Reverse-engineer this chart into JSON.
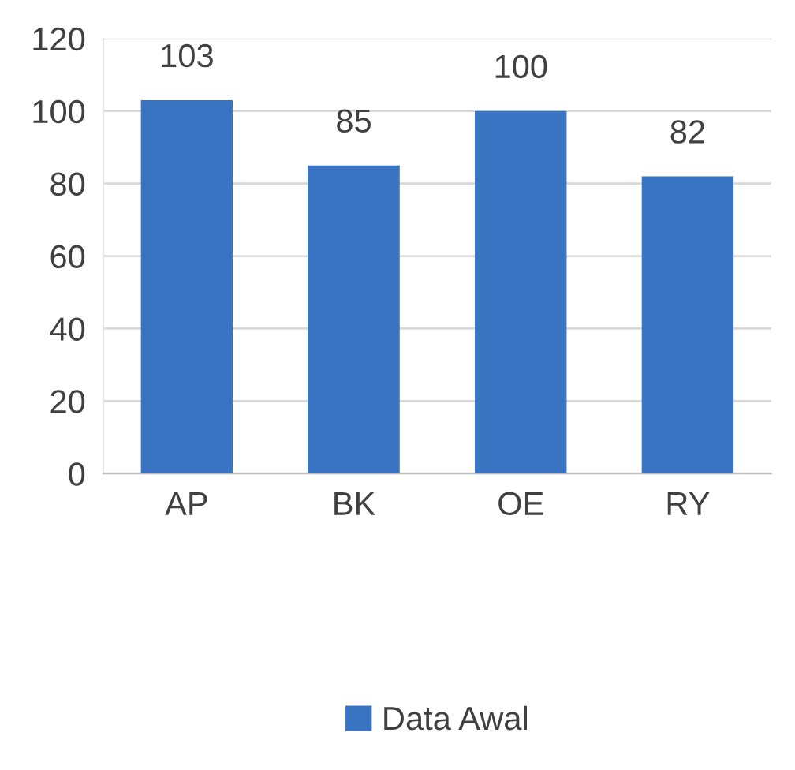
{
  "chart_data": {
    "type": "bar",
    "categories": [
      "AP",
      "BK",
      "OE",
      "RY"
    ],
    "series": [
      {
        "name": "Data Awal",
        "color": "#3a75c4",
        "values": [
          103,
          85,
          100,
          82
        ]
      }
    ],
    "ylim": [
      0,
      120
    ],
    "yticks": [
      0,
      20,
      40,
      60,
      80,
      100,
      120
    ],
    "grid": "y",
    "legend": "bottom",
    "data_labels": true
  }
}
